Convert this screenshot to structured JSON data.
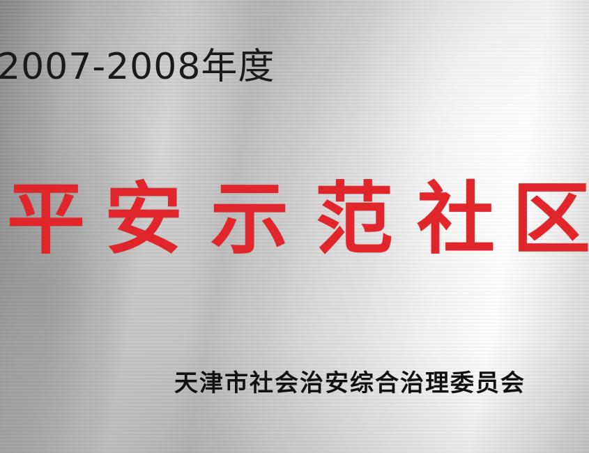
{
  "plaque": {
    "year_label": "2007-2008年度",
    "title_chars": [
      "平",
      "安",
      "示",
      "范",
      "社",
      "区"
    ],
    "issuer": "天津市社会治安综合治理委员会",
    "colors": {
      "title": "#e0262b",
      "text": "#1a1a1a",
      "metal": "#cfcfcf"
    }
  }
}
